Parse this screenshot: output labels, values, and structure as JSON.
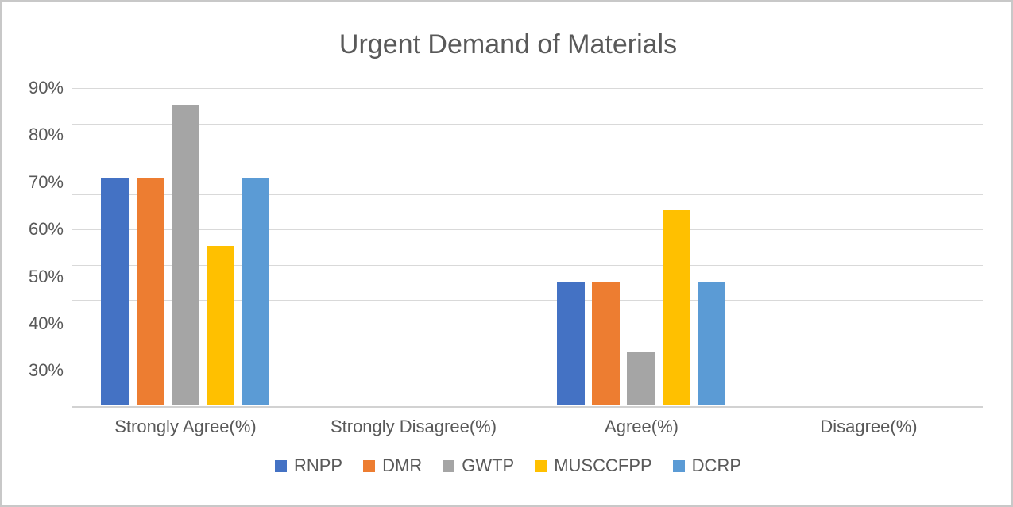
{
  "chart_data": {
    "type": "bar",
    "title": "Urgent Demand of Materials",
    "categories": [
      "Strongly Agree(%)",
      "Strongly Disagree(%)",
      "Agree(%)",
      "Disagree(%)"
    ],
    "series": [
      {
        "name": "RNPP",
        "color": "#4472C4",
        "values": [
          71,
          0,
          49,
          0
        ]
      },
      {
        "name": "DMR",
        "color": "#ED7D31",
        "values": [
          71,
          0,
          49,
          0
        ]
      },
      {
        "name": "GWTP",
        "color": "#A5A5A5",
        "values": [
          86.5,
          0,
          34,
          0
        ]
      },
      {
        "name": "MUSCCFPP",
        "color": "#FFC000",
        "values": [
          56.5,
          0,
          64,
          0
        ]
      },
      {
        "name": "DCRP",
        "color": "#5B9BD5",
        "values": [
          71,
          0,
          49,
          0
        ]
      }
    ],
    "y_axis": {
      "unit": "percent",
      "min": 22.5,
      "max": 90,
      "gridline_step": 7.5,
      "ticks": [
        {
          "label": "90%",
          "value": 90
        },
        {
          "label": "80%",
          "value": 80
        },
        {
          "label": "70%",
          "value": 70
        },
        {
          "label": "60%",
          "value": 60
        },
        {
          "label": "50%",
          "value": 50
        },
        {
          "label": "40%",
          "value": 40
        },
        {
          "label": "30%",
          "value": 30
        }
      ]
    },
    "xlabel": "",
    "ylabel": "",
    "grid": true,
    "legend_position": "bottom",
    "style": {
      "text_color": "#595959",
      "gridline_color": "#d9d9d9",
      "axis_line_color": "#d2d2d2",
      "background": "#ffffff",
      "border_color": "#c8c8c8"
    }
  }
}
